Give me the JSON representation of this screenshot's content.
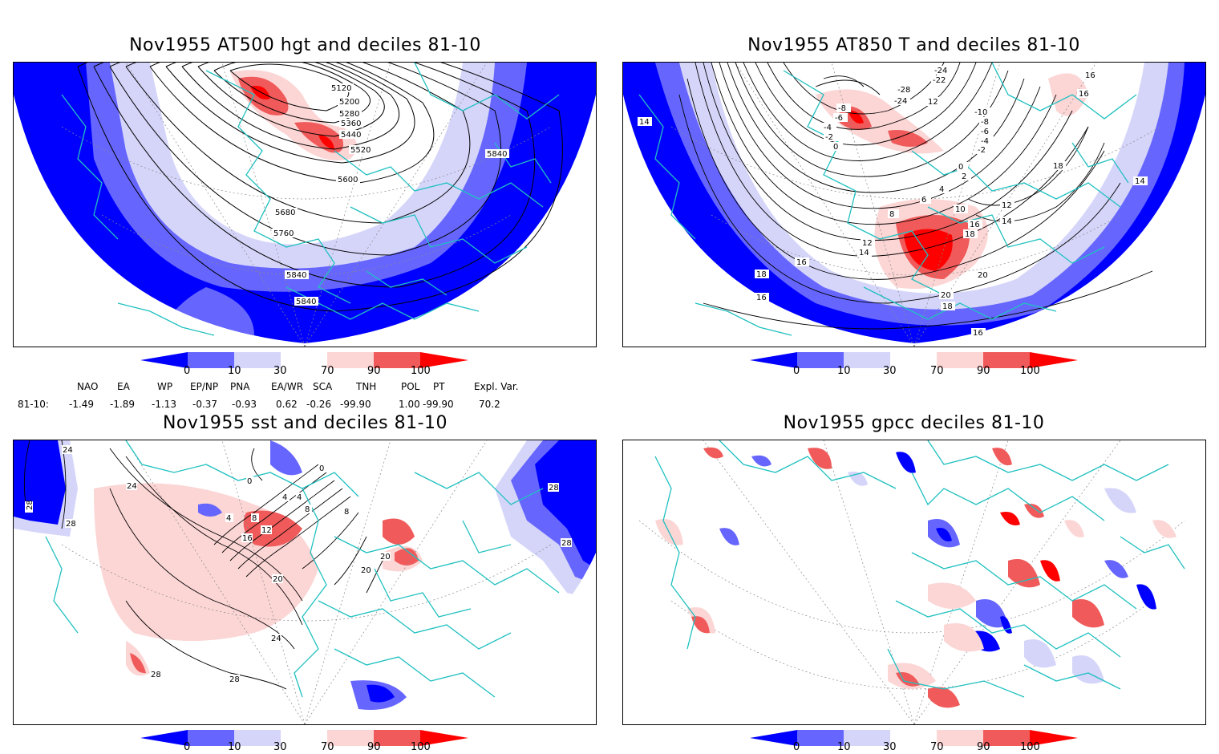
{
  "panels": [
    {
      "title": "Nov1955 AT500 hgt and deciles 81-10",
      "contour_labels": [
        "5120",
        "5200",
        "5280",
        "5360",
        "5440",
        "5520",
        "5600",
        "5680",
        "5760",
        "5840",
        "5840",
        "5840"
      ]
    },
    {
      "title": "Nov1955 AT850 T and deciles 81-10",
      "contour_labels": [
        "-24",
        "-22",
        "-28",
        "-24",
        "-8",
        "-6",
        "-4",
        "-2",
        "0",
        "12",
        "-10",
        "-8",
        "-6",
        "-4",
        "-2",
        "0",
        "2",
        "4",
        "6",
        "8",
        "10",
        "12",
        "14",
        "16",
        "18",
        "12",
        "14",
        "16",
        "16",
        "18",
        "16",
        "20",
        "20",
        "18",
        "16",
        "18",
        "16",
        "14",
        "14"
      ]
    },
    {
      "title": "Nov1955 sst and deciles 81-10",
      "contour_labels": [
        "28",
        "24",
        "28",
        "24",
        "0",
        "0",
        "4",
        "4",
        "8",
        "4",
        "8",
        "12",
        "16",
        "20",
        "24",
        "28",
        "28",
        "20",
        "20",
        "28",
        "28",
        "8"
      ]
    },
    {
      "title": "Nov1955 gpcc deciles 81-10",
      "contour_labels": []
    }
  ],
  "colorbar": {
    "ticks": [
      "0",
      "10",
      "30",
      "70",
      "90",
      "100"
    ],
    "colors": [
      "#0000ff",
      "#6666ff",
      "#d5d5fa",
      "#ffffff",
      "#fcd5d5",
      "#f05a5a",
      "#ff0000"
    ]
  },
  "indices": {
    "header": [
      "NAO",
      "EA",
      "WP",
      "EP/NP",
      "PNA",
      "EA/WR",
      "SCA",
      "TNH",
      "POL",
      "PT",
      "Expl. Var."
    ],
    "row_label": "81-10:",
    "values": [
      "-1.49",
      "-1.89",
      "-1.13",
      "-0.37",
      "-0.93",
      "0.62",
      "-0.26",
      "-99.90",
      "1.00",
      "-99.90",
      "70.2"
    ]
  },
  "colors": {
    "coast": "#20c0c0",
    "contour": "#000000",
    "grid": "#888888"
  }
}
